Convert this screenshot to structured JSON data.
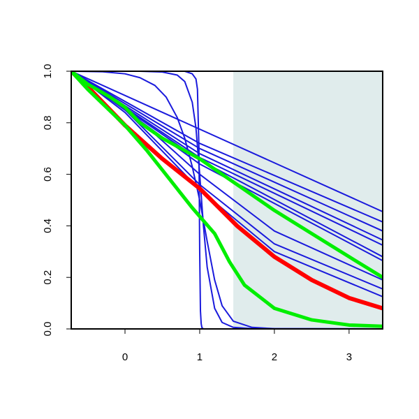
{
  "chart_data": {
    "type": "line",
    "title": "",
    "xlabel": "",
    "ylabel": "",
    "xlim": [
      -0.72,
      3.45
    ],
    "ylim": [
      0.0,
      1.0
    ],
    "x_ticks": [
      0,
      1,
      2,
      3
    ],
    "x_tick_labels": [
      "0",
      "1",
      "2",
      "3"
    ],
    "y_ticks": [
      0.0,
      0.2,
      0.4,
      0.6,
      0.8,
      1.0
    ],
    "y_tick_labels": [
      "0.0",
      "0.2",
      "0.4",
      "0.6",
      "0.8",
      "1.0"
    ],
    "grid": false,
    "legend": "none",
    "shaded_region": {
      "x_from": 1.45,
      "x_to": 3.45,
      "color": "#e0ecec"
    },
    "colors": {
      "blue": "#1a1adc",
      "red": "#ff0000",
      "green": "#00ee00",
      "shade": "#e0ecec"
    },
    "series": [
      {
        "color": "#1a1adc",
        "width": 2,
        "x": [
          -0.72,
          0.0,
          0.5,
          0.8,
          0.9,
          0.95,
          0.97,
          0.99,
          1.0,
          1.01,
          1.02,
          1.03,
          1.05,
          3.45
        ],
        "y": [
          1.0,
          1.0,
          1.0,
          1.0,
          0.99,
          0.97,
          0.93,
          0.7,
          0.3,
          0.07,
          0.02,
          0.005,
          0.0,
          0.0
        ]
      },
      {
        "color": "#1a1adc",
        "width": 2,
        "x": [
          -0.72,
          0.2,
          0.5,
          0.7,
          0.8,
          0.9,
          0.95,
          1.0,
          1.05,
          1.1,
          1.2,
          1.3,
          1.45,
          1.7,
          3.45
        ],
        "y": [
          1.0,
          1.0,
          0.997,
          0.985,
          0.96,
          0.88,
          0.78,
          0.6,
          0.4,
          0.24,
          0.08,
          0.025,
          0.006,
          0.001,
          0.0
        ]
      },
      {
        "color": "#1a1adc",
        "width": 2,
        "x": [
          -0.72,
          -0.3,
          0.0,
          0.2,
          0.4,
          0.55,
          0.7,
          0.8,
          0.9,
          1.0,
          1.1,
          1.2,
          1.3,
          1.45,
          1.7,
          2.0,
          3.45
        ],
        "y": [
          1.0,
          0.998,
          0.99,
          0.975,
          0.945,
          0.9,
          0.82,
          0.74,
          0.63,
          0.5,
          0.34,
          0.19,
          0.09,
          0.03,
          0.006,
          0.001,
          0.0
        ]
      },
      {
        "color": "#1a1adc",
        "width": 2,
        "x": [
          -0.72,
          3.45
        ],
        "y": [
          1.0,
          0.455
        ]
      },
      {
        "color": "#1a1adc",
        "width": 2,
        "x": [
          -0.72,
          1.0,
          3.45
        ],
        "y": [
          1.0,
          0.72,
          0.415
        ]
      },
      {
        "color": "#1a1adc",
        "width": 2,
        "x": [
          -0.72,
          1.0,
          3.45
        ],
        "y": [
          1.0,
          0.7,
          0.38
        ]
      },
      {
        "color": "#1a1adc",
        "width": 2,
        "x": [
          -0.72,
          1.0,
          3.45
        ],
        "y": [
          1.0,
          0.68,
          0.345
        ]
      },
      {
        "color": "#1a1adc",
        "width": 2,
        "x": [
          -0.72,
          1.0,
          3.45
        ],
        "y": [
          1.0,
          0.665,
          0.325
        ]
      },
      {
        "color": "#1a1adc",
        "width": 2,
        "x": [
          -0.72,
          1.0,
          3.45
        ],
        "y": [
          1.0,
          0.655,
          0.28
        ]
      },
      {
        "color": "#1a1adc",
        "width": 2,
        "x": [
          -0.72,
          1.0,
          3.45
        ],
        "y": [
          1.0,
          0.64,
          0.265
        ]
      },
      {
        "color": "#1a1adc",
        "width": 2,
        "x": [
          -0.72,
          0.0,
          1.0,
          2.0,
          3.45
        ],
        "y": [
          1.0,
          0.86,
          0.6,
          0.38,
          0.19
        ]
      },
      {
        "color": "#1a1adc",
        "width": 2,
        "x": [
          -0.72,
          0.0,
          1.0,
          2.0,
          3.45
        ],
        "y": [
          1.0,
          0.85,
          0.56,
          0.33,
          0.155
        ]
      },
      {
        "color": "#1a1adc",
        "width": 2,
        "x": [
          -0.72,
          0.0,
          1.0,
          2.0,
          3.45
        ],
        "y": [
          1.0,
          0.84,
          0.54,
          0.3,
          0.125
        ]
      },
      {
        "color": "#ff0000",
        "width": 6,
        "x": [
          -0.72,
          -0.5,
          0.0,
          0.5,
          1.0,
          1.5,
          2.0,
          2.5,
          3.0,
          3.45
        ],
        "y": [
          1.0,
          0.94,
          0.79,
          0.66,
          0.545,
          0.4,
          0.28,
          0.19,
          0.12,
          0.08
        ]
      },
      {
        "color": "#00ee00",
        "width": 5,
        "x": [
          -0.72,
          -0.5,
          -0.2,
          0.0,
          0.2,
          0.5,
          1.0,
          1.5,
          2.0,
          2.5,
          3.0,
          3.45
        ],
        "y": [
          1.0,
          0.95,
          0.9,
          0.86,
          0.8,
          0.74,
          0.66,
          0.56,
          0.46,
          0.37,
          0.28,
          0.2
        ]
      },
      {
        "color": "#00ee00",
        "width": 5,
        "x": [
          -0.72,
          -0.5,
          0.0,
          0.3,
          0.6,
          0.9,
          1.2,
          1.4,
          1.6,
          2.0,
          2.5,
          3.0,
          3.45
        ],
        "y": [
          1.0,
          0.93,
          0.79,
          0.69,
          0.58,
          0.47,
          0.37,
          0.26,
          0.17,
          0.08,
          0.035,
          0.015,
          0.01
        ]
      }
    ]
  }
}
